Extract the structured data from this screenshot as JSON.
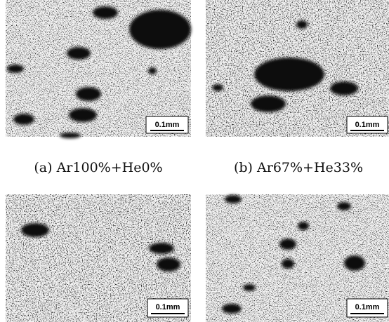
{
  "panels": [
    {
      "caption": "(a) Ar100%+He0%",
      "scale_label": "0.1mm"
    },
    {
      "caption": "(b) Ar67%+He33%",
      "scale_label": "0.1mm"
    },
    {
      "scale_label": "0.1mm"
    },
    {
      "scale_label": "0.1mm"
    }
  ]
}
